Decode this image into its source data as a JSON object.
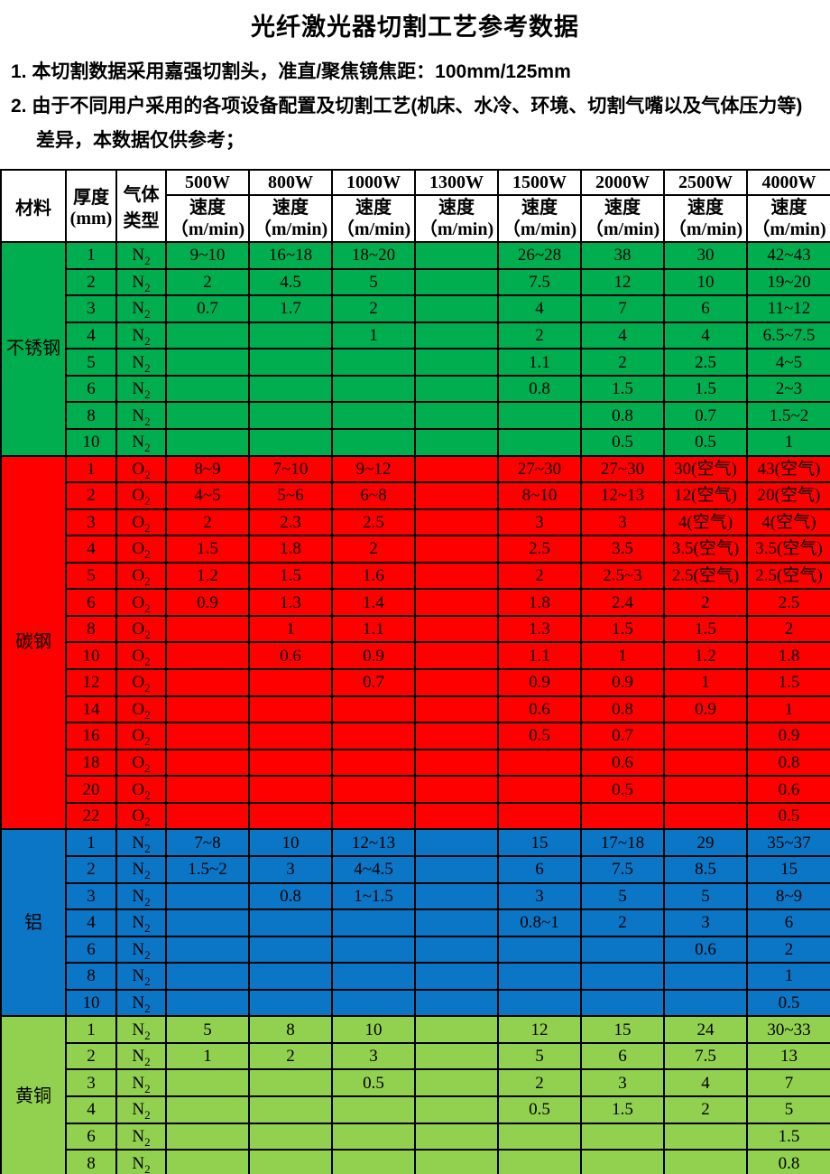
{
  "title": "光纤激光器切割工艺参考数据",
  "notes": {
    "note1": "1. 本切割数据采用嘉强切割头，准直/聚焦镜焦距：100mm/125mm",
    "note2": "2. 由于不同用户采用的各项设备配置及切割工艺(机床、水冷、环境、切割气嘴以及气体压力等)差异，本数据仅供参考；"
  },
  "table": {
    "header": {
      "material": "材料",
      "thickness_line1": "厚度",
      "thickness_line2": "(mm)",
      "gas_line1": "气体",
      "gas_line2": "类型",
      "powers": [
        "500W",
        "800W",
        "1000W",
        "1300W",
        "1500W",
        "2000W",
        "2500W",
        "4000W"
      ],
      "speed_label": "速度",
      "speed_unit": "（m/min)"
    },
    "sections": [
      {
        "id": "stainless-steel",
        "material": "不锈钢",
        "color": "#00AE50",
        "gas": {
          "letter": "N",
          "sub": "2"
        },
        "rows": [
          {
            "thickness": "1",
            "speeds": [
              "9~10",
              "16~18",
              "18~20",
              "",
              "26~28",
              "38",
              "30",
              "42~43"
            ]
          },
          {
            "thickness": "2",
            "speeds": [
              "2",
              "4.5",
              "5",
              "",
              "7.5",
              "12",
              "10",
              "19~20"
            ]
          },
          {
            "thickness": "3",
            "speeds": [
              "0.7",
              "1.7",
              "2",
              "",
              "4",
              "7",
              "6",
              "11~12"
            ]
          },
          {
            "thickness": "4",
            "speeds": [
              "",
              "",
              "1",
              "",
              "2",
              "4",
              "4",
              "6.5~7.5"
            ]
          },
          {
            "thickness": "5",
            "speeds": [
              "",
              "",
              "",
              "",
              "1.1",
              "2",
              "2.5",
              "4~5"
            ]
          },
          {
            "thickness": "6",
            "speeds": [
              "",
              "",
              "",
              "",
              "0.8",
              "1.5",
              "1.5",
              "2~3"
            ]
          },
          {
            "thickness": "8",
            "speeds": [
              "",
              "",
              "",
              "",
              "",
              "0.8",
              "0.7",
              "1.5~2"
            ]
          },
          {
            "thickness": "10",
            "speeds": [
              "",
              "",
              "",
              "",
              "",
              "0.5",
              "0.5",
              "1"
            ]
          }
        ]
      },
      {
        "id": "carbon-steel",
        "material": "碳钢",
        "color": "#FF0000",
        "gas": {
          "letter": "O",
          "sub": "2"
        },
        "rows": [
          {
            "thickness": "1",
            "speeds": [
              "8~9",
              "7~10",
              "9~12",
              "",
              "27~30",
              "27~30",
              "30(空气)",
              "43(空气)"
            ]
          },
          {
            "thickness": "2",
            "speeds": [
              "4~5",
              "5~6",
              "6~8",
              "",
              "8~10",
              "12~13",
              "12(空气)",
              "20(空气)"
            ]
          },
          {
            "thickness": "3",
            "speeds": [
              "2",
              "2.3",
              "2.5",
              "",
              "3",
              "3",
              "4(空气)",
              "4(空气)"
            ]
          },
          {
            "thickness": "4",
            "speeds": [
              "1.5",
              "1.8",
              "2",
              "",
              "2.5",
              "3.5",
              "3.5(空气)",
              "3.5(空气)"
            ]
          },
          {
            "thickness": "5",
            "speeds": [
              "1.2",
              "1.5",
              "1.6",
              "",
              "2",
              "2.5~3",
              "2.5(空气)",
              "2.5(空气)"
            ]
          },
          {
            "thickness": "6",
            "speeds": [
              "0.9",
              "1.3",
              "1.4",
              "",
              "1.8",
              "2.4",
              "2",
              "2.5"
            ]
          },
          {
            "thickness": "8",
            "speeds": [
              "",
              "1",
              "1.1",
              "",
              "1.3",
              "1.5",
              "1.5",
              "2"
            ]
          },
          {
            "thickness": "10",
            "speeds": [
              "",
              "0.6",
              "0.9",
              "",
              "1.1",
              "1",
              "1.2",
              "1.8"
            ]
          },
          {
            "thickness": "12",
            "speeds": [
              "",
              "",
              "0.7",
              "",
              "0.9",
              "0.9",
              "1",
              "1.5"
            ]
          },
          {
            "thickness": "14",
            "speeds": [
              "",
              "",
              "",
              "",
              "0.6",
              "0.8",
              "0.9",
              "1"
            ]
          },
          {
            "thickness": "16",
            "speeds": [
              "",
              "",
              "",
              "",
              "0.5",
              "0.7",
              "",
              "0.9"
            ]
          },
          {
            "thickness": "18",
            "speeds": [
              "",
              "",
              "",
              "",
              "",
              "0.6",
              "",
              "0.8"
            ]
          },
          {
            "thickness": "20",
            "speeds": [
              "",
              "",
              "",
              "",
              "",
              "0.5",
              "",
              "0.6"
            ]
          },
          {
            "thickness": "22",
            "speeds": [
              "",
              "",
              "",
              "",
              "",
              "",
              "",
              "0.5"
            ]
          }
        ]
      },
      {
        "id": "aluminum",
        "material": "铝",
        "color": "#0B76C6",
        "gas": {
          "letter": "N",
          "sub": "2"
        },
        "rows": [
          {
            "thickness": "1",
            "speeds": [
              "7~8",
              "10",
              "12~13",
              "",
              "15",
              "17~18",
              "29",
              "35~37"
            ]
          },
          {
            "thickness": "2",
            "speeds": [
              "1.5~2",
              "3",
              "4~4.5",
              "",
              "6",
              "7.5",
              "8.5",
              "15"
            ]
          },
          {
            "thickness": "3",
            "speeds": [
              "",
              "0.8",
              "1~1.5",
              "",
              "3",
              "5",
              "5",
              "8~9"
            ]
          },
          {
            "thickness": "4",
            "speeds": [
              "",
              "",
              "",
              "",
              "0.8~1",
              "2",
              "3",
              "6"
            ]
          },
          {
            "thickness": "6",
            "speeds": [
              "",
              "",
              "",
              "",
              "",
              "",
              "0.6",
              "2"
            ]
          },
          {
            "thickness": "8",
            "speeds": [
              "",
              "",
              "",
              "",
              "",
              "",
              "",
              "1"
            ]
          },
          {
            "thickness": "10",
            "speeds": [
              "",
              "",
              "",
              "",
              "",
              "",
              "",
              "0.5"
            ]
          }
        ]
      },
      {
        "id": "brass",
        "material": "黄铜",
        "color": "#92D050",
        "gas": {
          "letter": "N",
          "sub": "2"
        },
        "rows": [
          {
            "thickness": "1",
            "speeds": [
              "5",
              "8",
              "10",
              "",
              "12",
              "15",
              "24",
              "30~33"
            ]
          },
          {
            "thickness": "2",
            "speeds": [
              "1",
              "2",
              "3",
              "",
              "5",
              "6",
              "7.5",
              "13"
            ]
          },
          {
            "thickness": "3",
            "speeds": [
              "",
              "",
              "0.5",
              "",
              "2",
              "3",
              "4",
              "7"
            ]
          },
          {
            "thickness": "4",
            "speeds": [
              "",
              "",
              "",
              "",
              "0.5",
              "1.5",
              "2",
              "5"
            ]
          },
          {
            "thickness": "6",
            "speeds": [
              "",
              "",
              "",
              "",
              "",
              "",
              "",
              "1.5"
            ]
          },
          {
            "thickness": "8",
            "speeds": [
              "",
              "",
              "",
              "",
              "",
              "",
              "",
              "0.8"
            ]
          }
        ]
      }
    ]
  },
  "colors": {
    "stainless_green": "#00AE50",
    "carbon_red": "#FF0000",
    "aluminum_blue": "#0B76C6",
    "brass_green": "#92D050",
    "grid_border": "#000000"
  }
}
